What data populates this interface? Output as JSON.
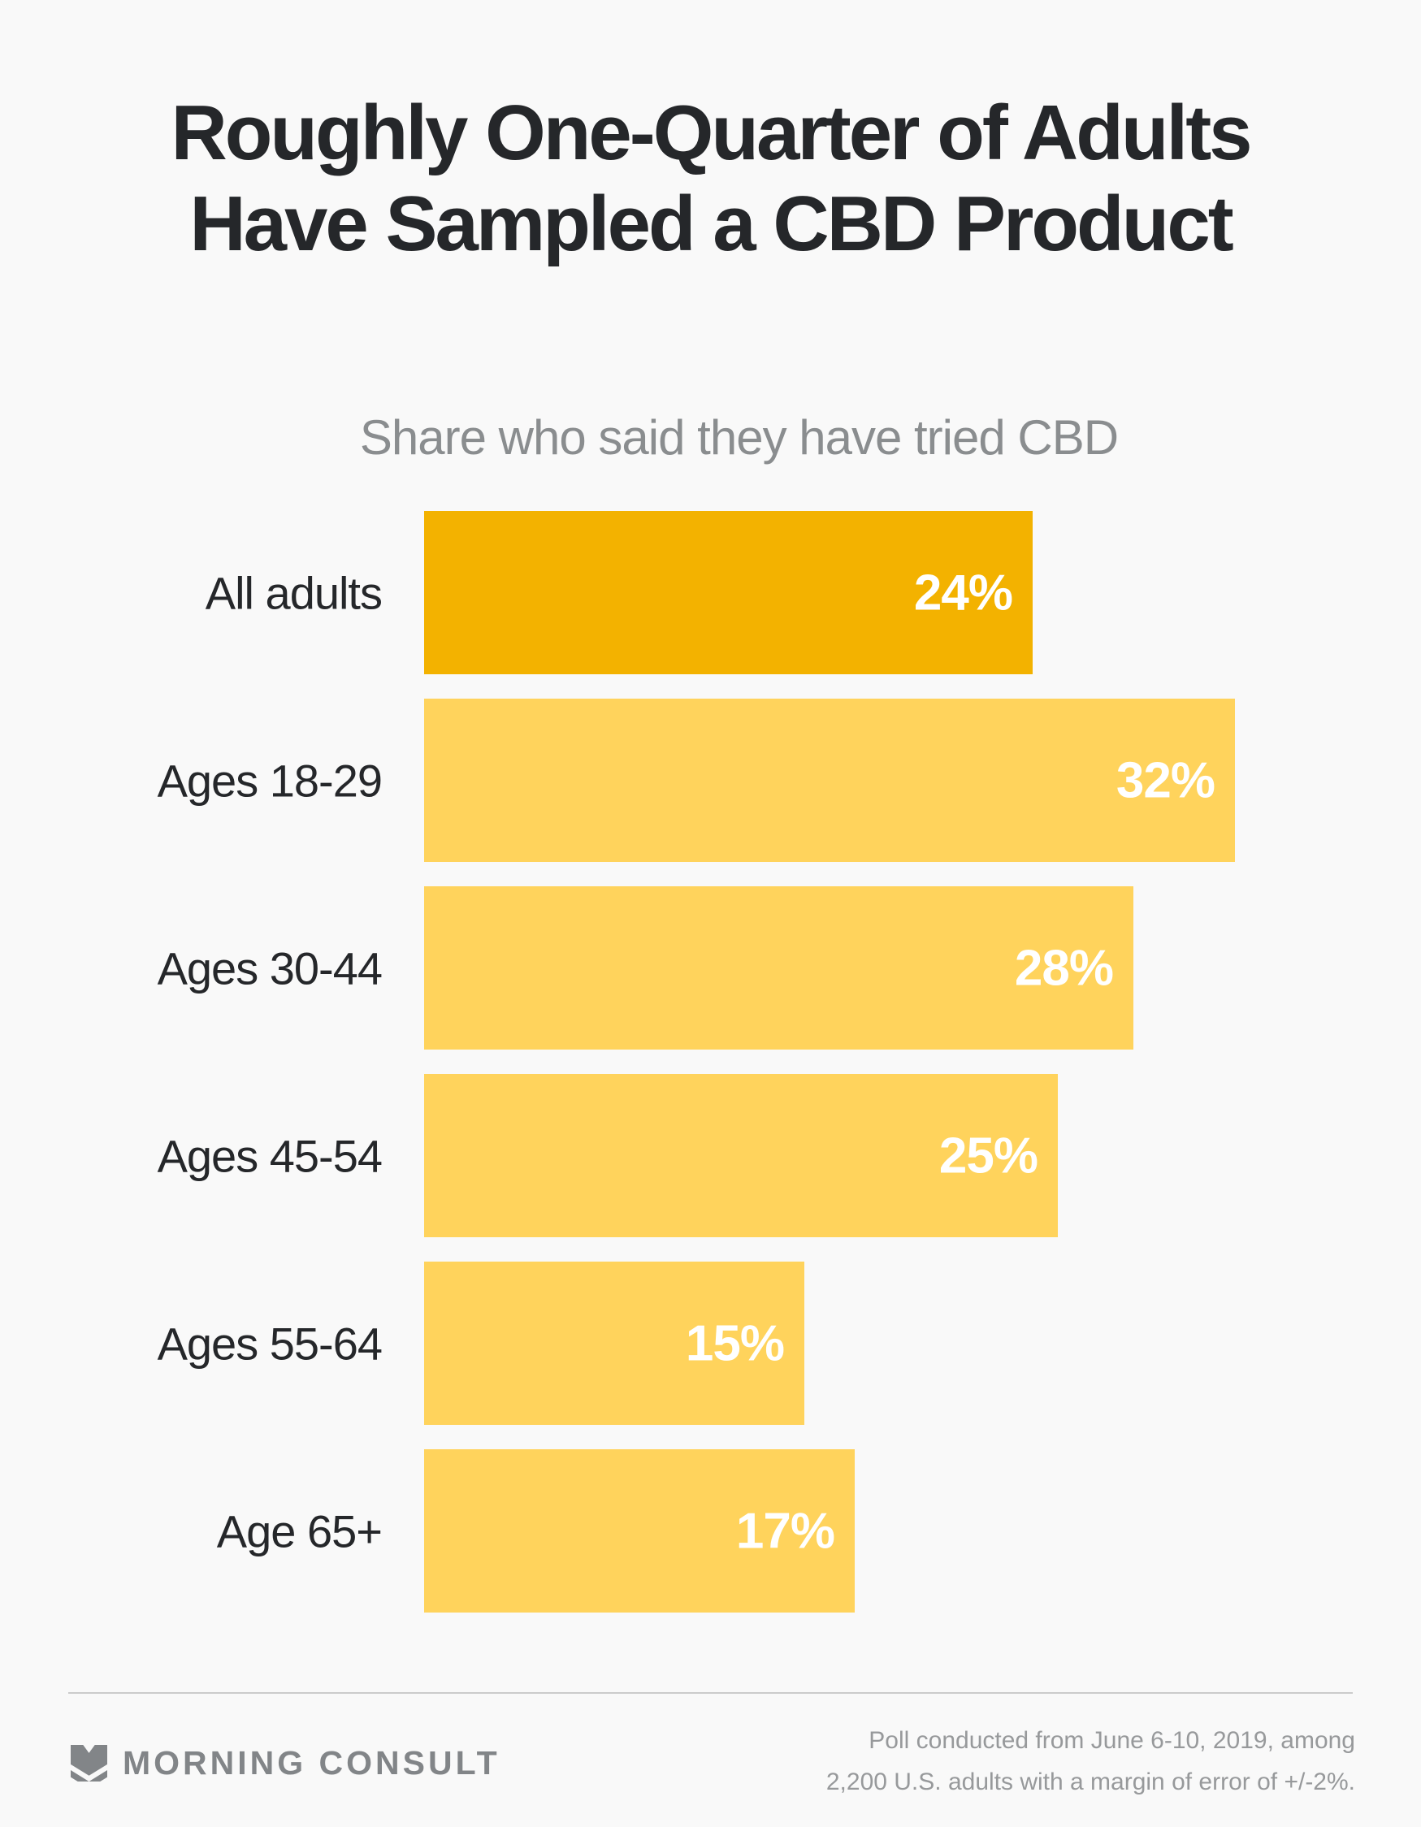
{
  "page": {
    "background": "#F9F9F9"
  },
  "header": {
    "title_line1": "Roughly One-Quarter of Adults",
    "title_line2": "Have Sampled a CBD Product",
    "subtitle": "Share who said they have tried CBD"
  },
  "chart_data": {
    "type": "bar",
    "orientation": "horizontal",
    "title": "Roughly One-Quarter of Adults Have Sampled a CBD Product",
    "subtitle": "Share who said they have tried CBD",
    "categories": [
      "All adults",
      "Ages 18-29",
      "Ages 30-44",
      "Ages 45-54",
      "Ages 55-64",
      "Age 65+"
    ],
    "values": [
      24,
      32,
      28,
      25,
      15,
      17
    ],
    "value_labels": [
      "24%",
      "32%",
      "28%",
      "25%",
      "15%",
      "17%"
    ],
    "unit": "%",
    "xlim": [
      0,
      32
    ],
    "grid": false,
    "legend": false,
    "value_label_position": "inside-right",
    "highlight_index": 0,
    "colors": {
      "highlight_bar": "#F3B200",
      "default_bar": "#FFD35C",
      "value_label": "#FFFFFF",
      "category_label": "#25272A"
    }
  },
  "footer": {
    "brand": "MORNING CONSULT",
    "source_line1": "Poll conducted from June 6-10, 2019, among",
    "source_line2": "2,200 U.S. adults with a margin of error of +/-2%."
  }
}
